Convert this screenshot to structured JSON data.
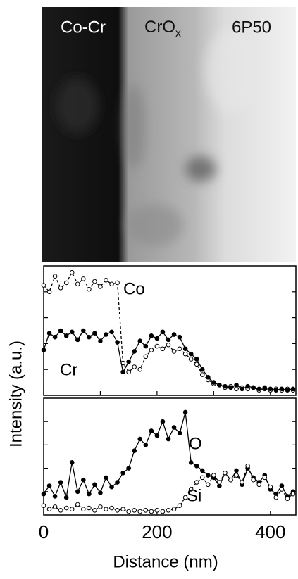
{
  "micrograph": {
    "labels": [
      {
        "text": "Co-Cr"
      },
      {
        "text": "CrO",
        "sub": "x"
      },
      {
        "text": "6P50"
      }
    ]
  },
  "ylabel": "Intensity (a.u.)",
  "chart_data": [
    {
      "type": "line",
      "x": [
        0,
        10,
        20,
        30,
        40,
        50,
        60,
        70,
        80,
        90,
        100,
        110,
        120,
        130,
        140,
        150,
        160,
        170,
        180,
        190,
        200,
        210,
        220,
        230,
        240,
        250,
        260,
        270,
        280,
        290,
        300,
        310,
        320,
        330,
        340,
        350,
        360,
        370,
        380,
        390,
        400,
        410,
        420,
        430,
        440
      ],
      "xlim": [
        0,
        445
      ],
      "xticks": [
        0,
        100,
        200,
        300,
        400
      ],
      "ylim": [
        0,
        10
      ],
      "yticks": [
        2,
        4,
        6,
        8
      ],
      "series": [
        {
          "name": "Co",
          "color": "#000000",
          "marker": "open",
          "dash": true,
          "values": [
            8.5,
            8.0,
            9.2,
            8.3,
            8.7,
            9.5,
            8.6,
            9.0,
            8.2,
            8.8,
            8.4,
            8.9,
            8.6,
            8.7,
            2.5,
            1.8,
            2.2,
            2.0,
            3.0,
            3.5,
            3.8,
            3.6,
            3.9,
            3.4,
            3.6,
            3.2,
            2.8,
            2.4,
            1.6,
            1.2,
            0.9,
            0.8,
            0.6,
            0.7,
            0.5,
            0.6,
            0.5,
            0.6,
            0.4,
            0.5,
            0.4,
            0.5,
            0.4,
            0.5,
            0.4
          ]
        },
        {
          "name": "Cr",
          "color": "#000000",
          "marker": "filled",
          "dash": false,
          "values": [
            3.5,
            4.8,
            4.5,
            5.0,
            4.6,
            4.9,
            4.3,
            5.0,
            4.5,
            4.8,
            4.2,
            4.7,
            4.9,
            4.1,
            1.8,
            2.6,
            3.4,
            4.2,
            3.8,
            4.6,
            4.4,
            4.9,
            4.3,
            4.7,
            4.5,
            3.6,
            3.2,
            2.8,
            2.0,
            1.4,
            1.0,
            0.8,
            0.7,
            0.6,
            0.8,
            0.5,
            0.7,
            0.6,
            0.5,
            0.6,
            0.5,
            0.4,
            0.5,
            0.4,
            0.5
          ]
        }
      ]
    },
    {
      "type": "line",
      "xlabel": "Distance (nm)",
      "x": [
        0,
        10,
        20,
        30,
        40,
        50,
        60,
        70,
        80,
        90,
        100,
        110,
        120,
        130,
        140,
        150,
        160,
        170,
        180,
        190,
        200,
        210,
        220,
        230,
        240,
        250,
        260,
        270,
        280,
        290,
        300,
        310,
        320,
        330,
        340,
        350,
        360,
        370,
        380,
        390,
        400,
        410,
        420,
        430,
        440
      ],
      "xlim": [
        0,
        445
      ],
      "xticks": [
        0,
        200,
        400
      ],
      "ylim": [
        0,
        10
      ],
      "yticks": [
        2,
        4,
        6,
        8
      ],
      "series": [
        {
          "name": "O",
          "color": "#000000",
          "marker": "filled",
          "dash": false,
          "values": [
            1.8,
            2.5,
            1.6,
            2.8,
            1.5,
            4.5,
            2.0,
            3.0,
            1.8,
            2.6,
            1.9,
            3.2,
            2.4,
            2.8,
            3.6,
            4.0,
            5.5,
            6.5,
            6.0,
            7.2,
            6.8,
            8.0,
            6.5,
            7.5,
            7.0,
            8.8,
            4.5,
            4.2,
            3.8,
            3.4,
            3.2,
            2.5,
            3.6,
            3.0,
            3.8,
            2.6,
            4.0,
            3.2,
            2.8,
            3.4,
            2.2,
            1.8,
            2.5,
            1.6,
            2.0
          ]
        },
        {
          "name": "Si",
          "color": "#000000",
          "marker": "open",
          "dash": true,
          "values": [
            0.8,
            0.5,
            0.7,
            0.4,
            0.6,
            0.5,
            0.9,
            0.5,
            0.6,
            0.4,
            0.7,
            0.5,
            0.6,
            0.4,
            0.5,
            0.3,
            0.4,
            0.3,
            0.4,
            0.3,
            0.4,
            0.3,
            0.4,
            0.5,
            0.8,
            1.5,
            2.2,
            2.8,
            3.2,
            2.6,
            3.4,
            2.8,
            3.6,
            3.0,
            3.4,
            2.8,
            4.2,
            3.0,
            2.6,
            3.2,
            2.4,
            1.5,
            2.2,
            1.4,
            1.8
          ]
        }
      ]
    }
  ]
}
